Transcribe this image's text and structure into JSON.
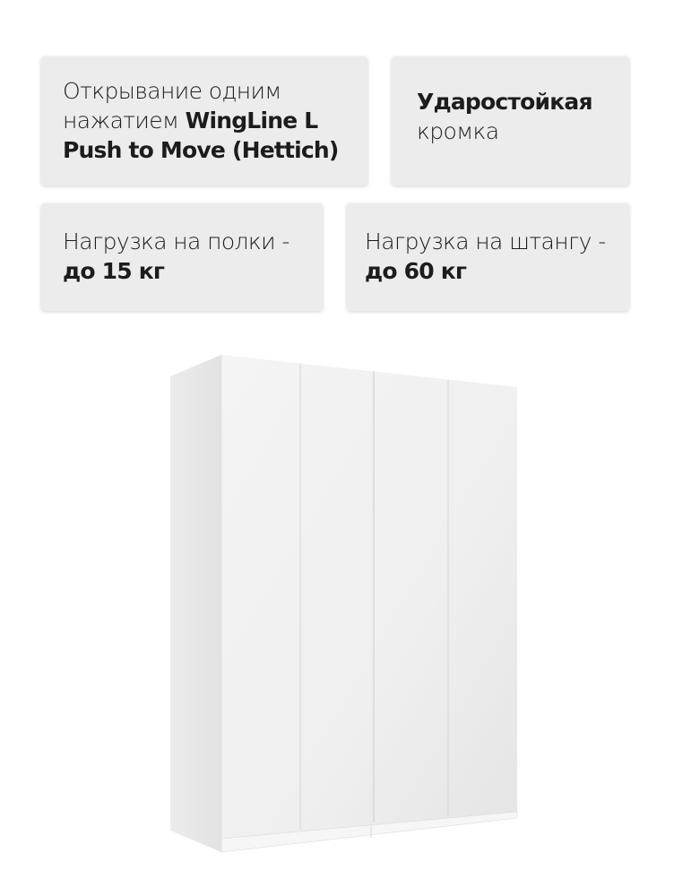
{
  "features": [
    {
      "line1": "Открывание одним",
      "line2_regular": "нажатием ",
      "line2_bold": "WingLine L",
      "line3_bold": "Push to Move (Hettich)"
    },
    {
      "line1_bold": "Ударостойкая",
      "line2": "кромка"
    },
    {
      "line1": "Нагрузка на полки -",
      "line2_bold": "до 15 кг"
    },
    {
      "line1": "Нагрузка на штангу -",
      "line2_bold": "до 60 кг"
    }
  ],
  "product": {
    "image": "wardrobe-4-door-white",
    "color": "#f2f2f2",
    "doors": 4
  }
}
